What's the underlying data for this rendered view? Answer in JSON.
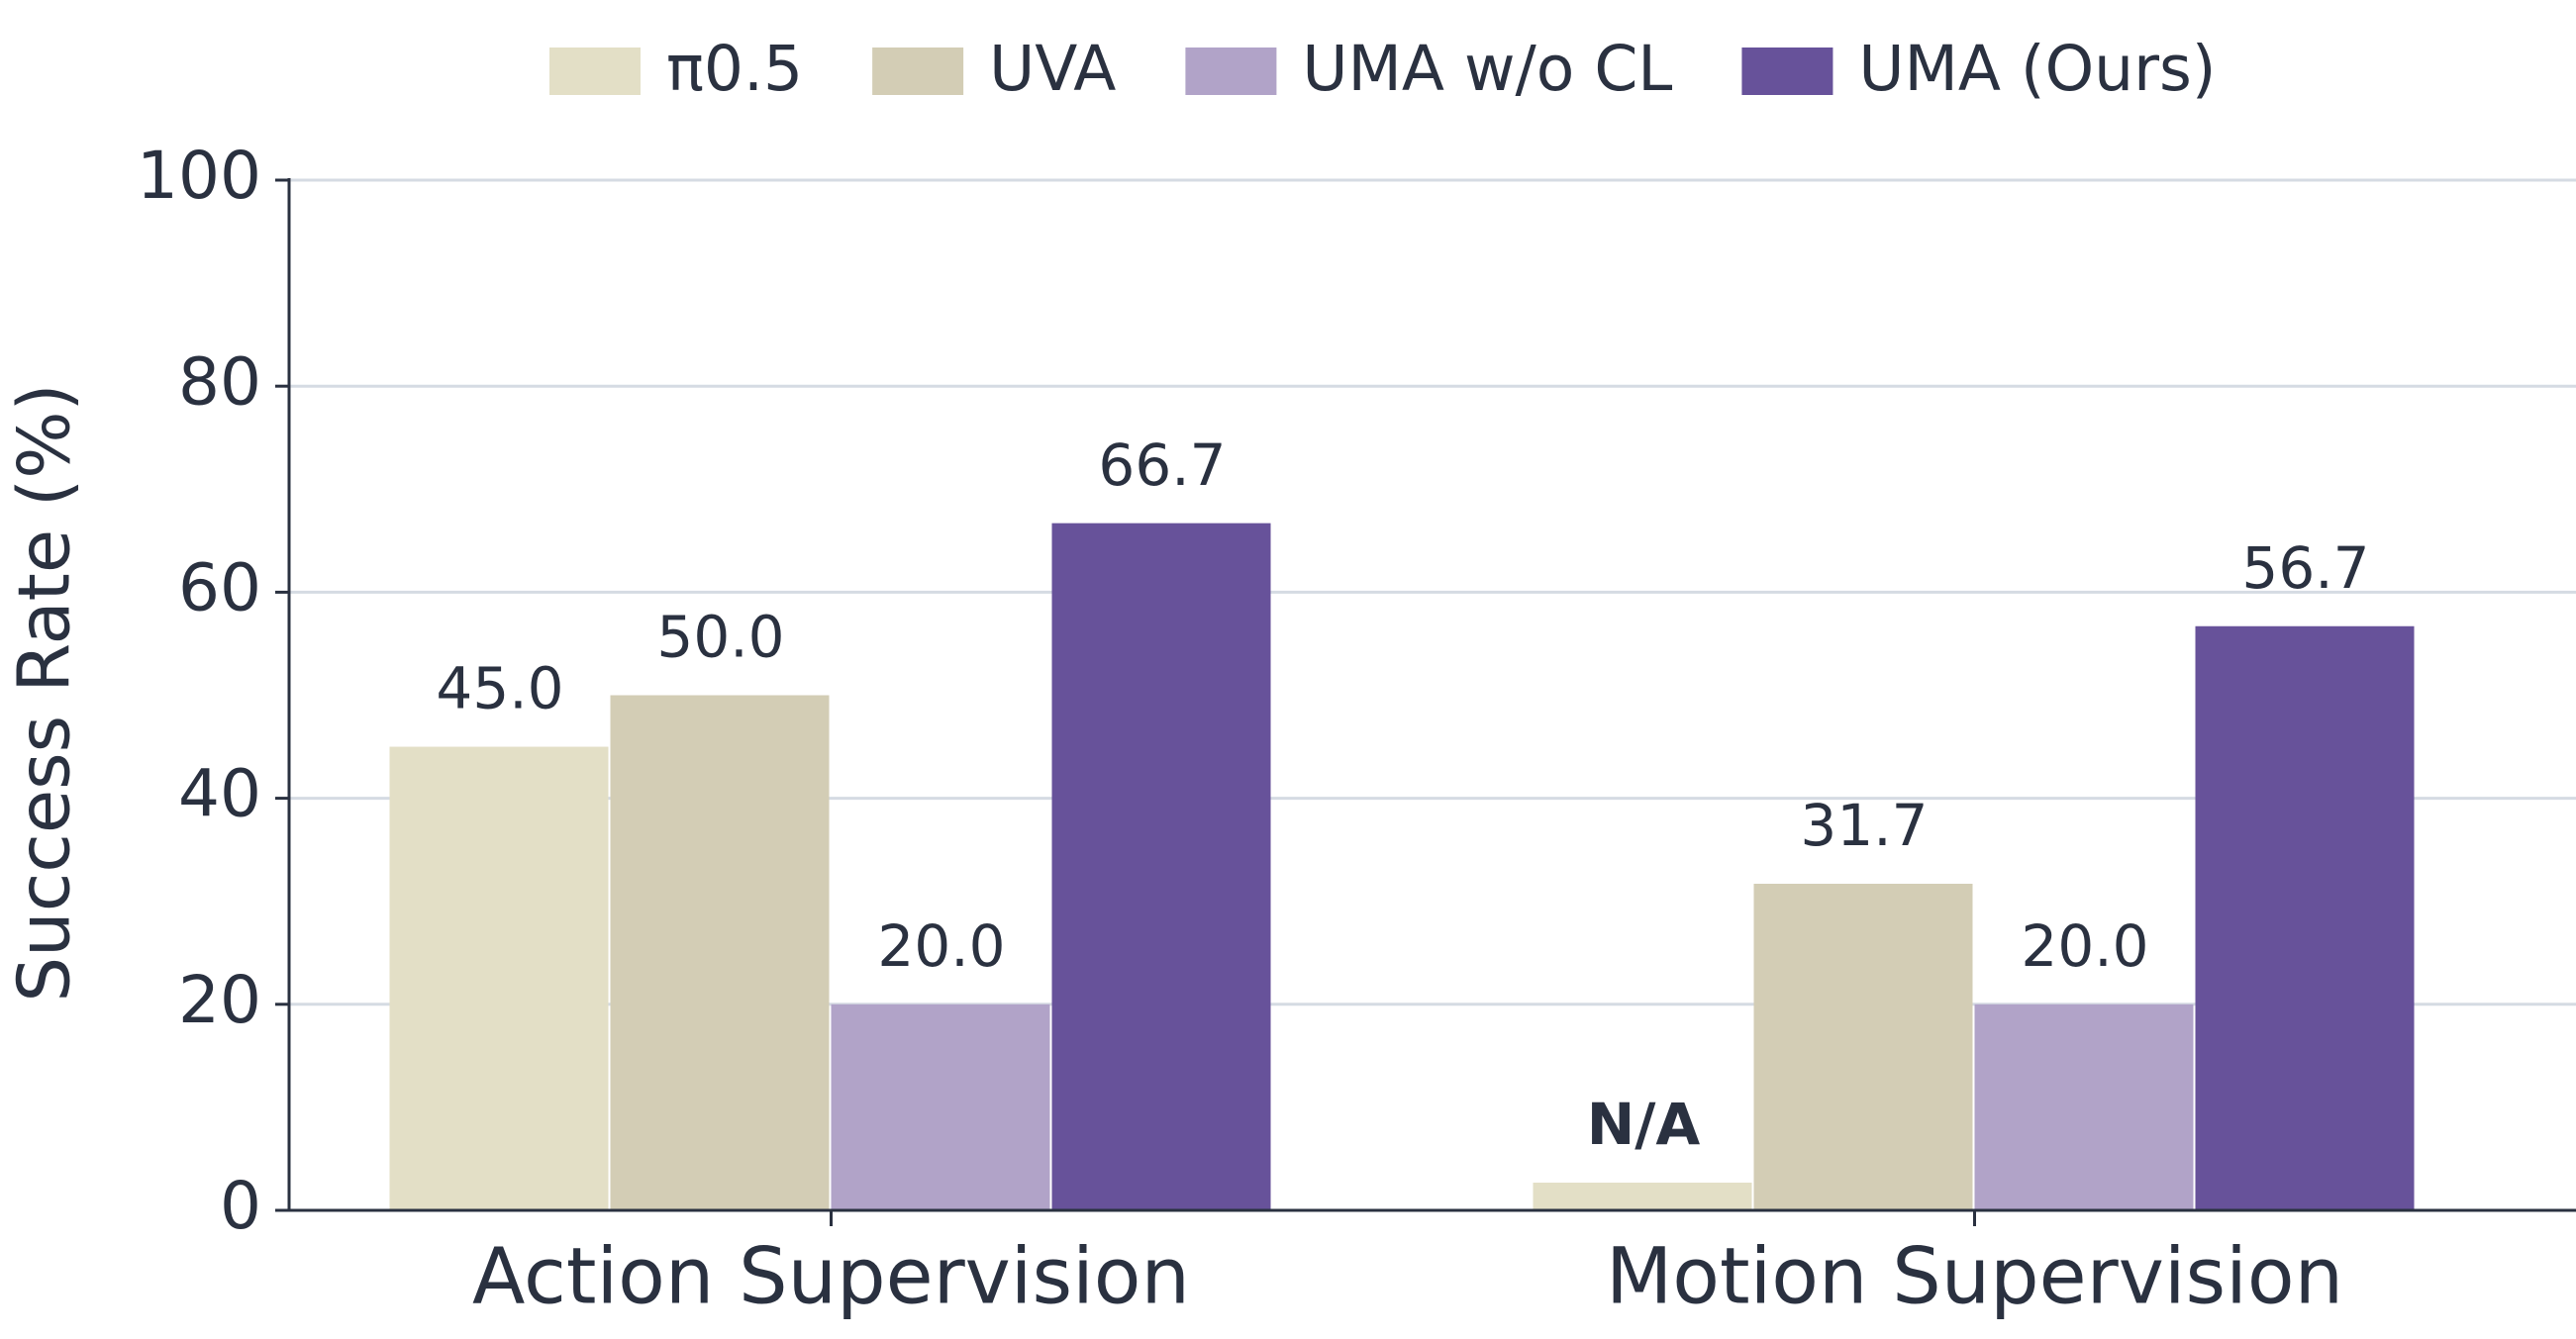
{
  "chart_data": {
    "type": "bar",
    "y_label": "Success Rate (%)",
    "categories": [
      "Action Supervision",
      "Motion Supervision"
    ],
    "series": [
      {
        "name": "π0.5",
        "color": "#e3dfc6",
        "values": [
          45.0,
          null
        ],
        "value_labels": [
          "45.0",
          "N/A"
        ]
      },
      {
        "name": "UVA",
        "color": "#d3cdb5",
        "values": [
          50.0,
          31.7
        ],
        "value_labels": [
          "50.0",
          "31.7"
        ]
      },
      {
        "name": "UMA w/o CL",
        "color": "#b1a3c8",
        "values": [
          20.0,
          20.0
        ],
        "value_labels": [
          "20.0",
          "20.0"
        ]
      },
      {
        "name": "UMA (Ours)",
        "color": "#67529a",
        "values": [
          66.7,
          56.7
        ],
        "value_labels": [
          "66.7",
          "56.7"
        ]
      }
    ],
    "ylim": [
      0,
      100
    ],
    "yticks": [
      0,
      20,
      40,
      60,
      80,
      100
    ],
    "grid": true,
    "legend": "top"
  }
}
